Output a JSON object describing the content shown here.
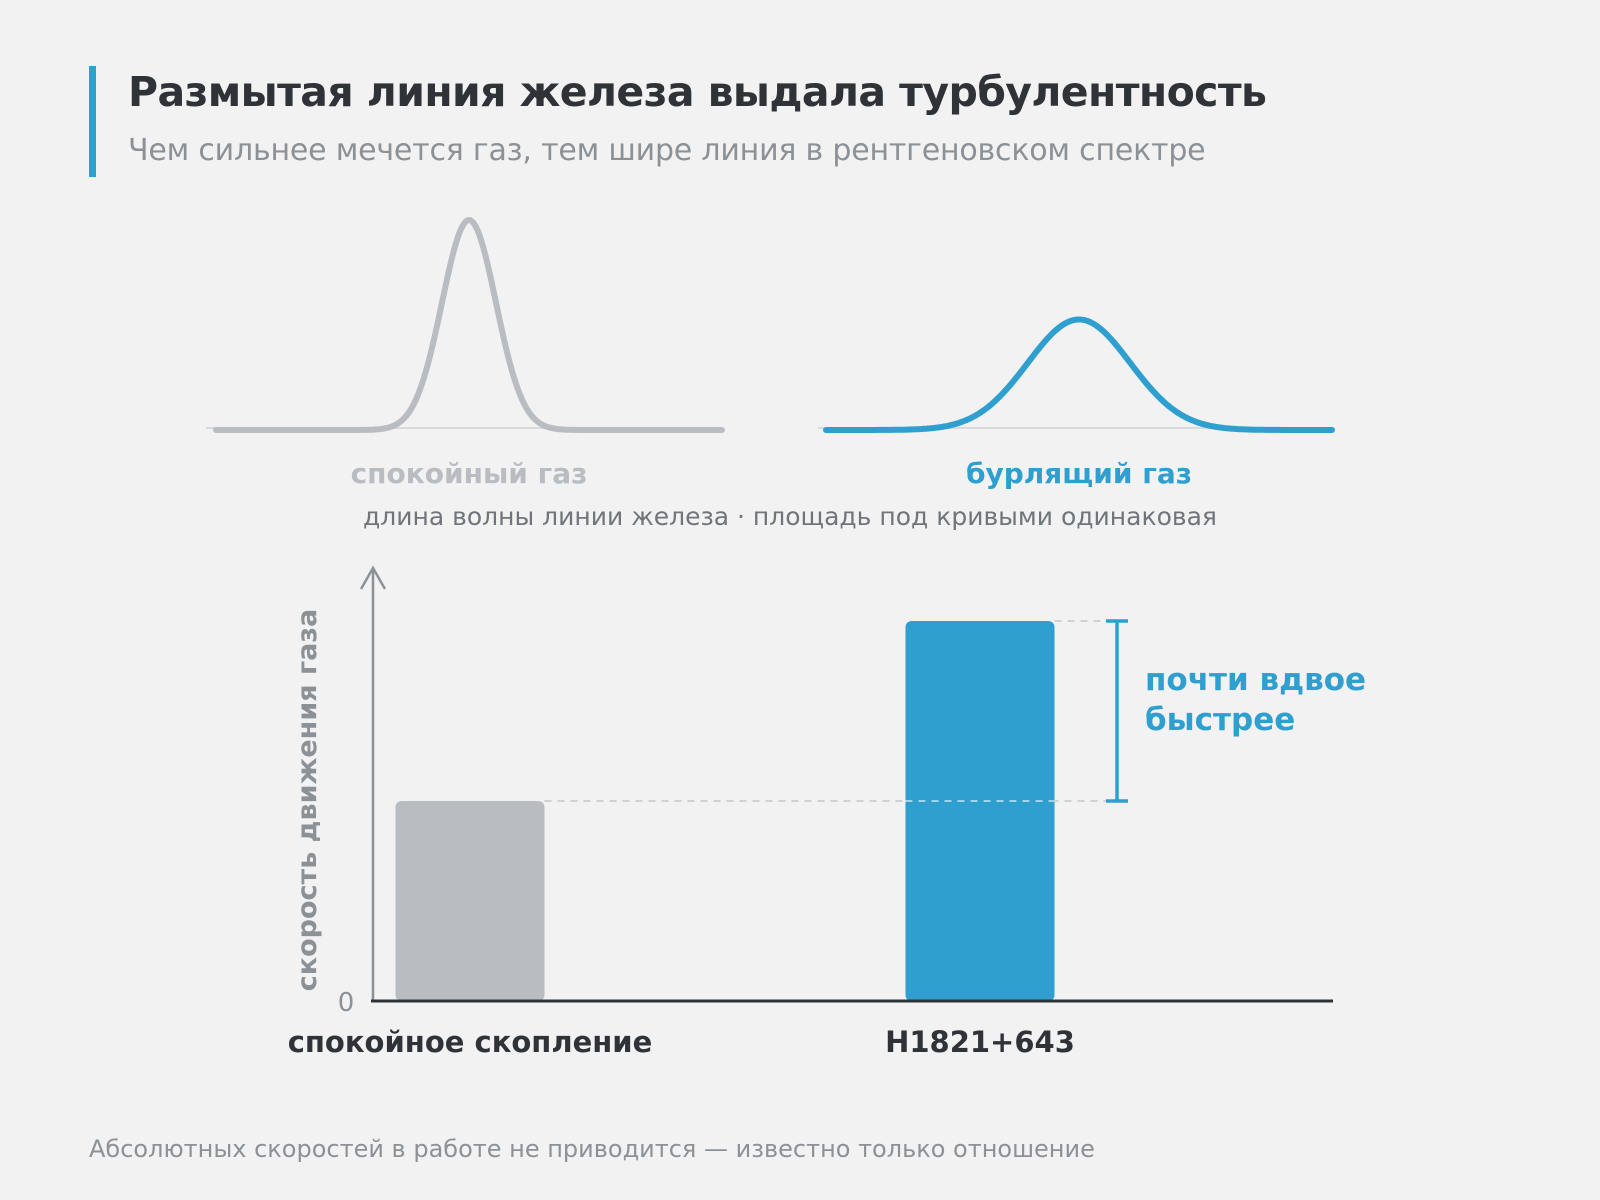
{
  "header": {
    "title": "Размытая линия железа выдала турбулентность",
    "subtitle": "Чем сильнее мечется газ, тем шире линия в рентгеновском спектре"
  },
  "profiles": {
    "calm_label": "спокойный газ",
    "turbulent_label": "бурлящий газ",
    "axis_note": "длина волны линии железа · площадь под кривыми одинаковая",
    "calm_relative_width": 1,
    "turbulent_relative_width": 1.9
  },
  "annotation": {
    "line1": "почти вдвое",
    "line2": "быстрее"
  },
  "footnote": "Абсолютных скоростей в работе не приводится — известно только отношение",
  "colors": {
    "calm": "#b9bcc1",
    "turbulent": "#2e9fcf",
    "axis": "#2f3337",
    "text_muted": "#8c9196"
  },
  "chart_data": {
    "type": "bar",
    "categories": [
      "спокойное скопление",
      "H1821+643"
    ],
    "values": [
      1.0,
      1.9
    ],
    "ylabel": "скорость движения газа",
    "yticks": [
      "0"
    ],
    "ylim": [
      0,
      2.1
    ],
    "grid": false,
    "legend": "none"
  }
}
